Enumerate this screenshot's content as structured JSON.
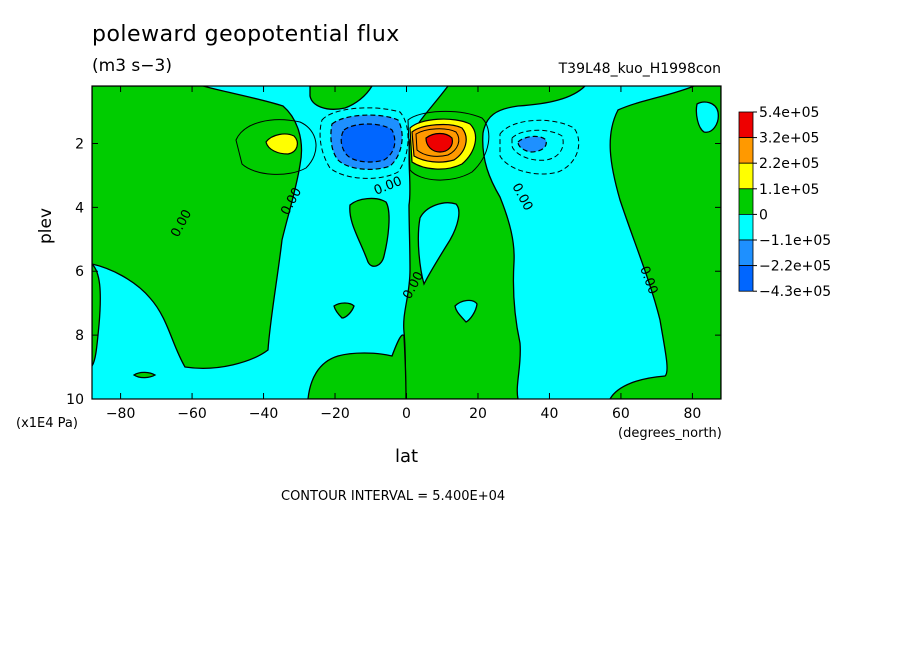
{
  "chart_data": {
    "type": "heatmap",
    "title": "poleward geopotential flux",
    "subtitle": "(m3 s−3)",
    "run_label": "T39L48_kuo_H1998con",
    "xlabel": "lat",
    "x_unit": "(degrees_north)",
    "ylabel": "plev",
    "y_unit": "(x1E4 Pa)",
    "xlim": [
      -88,
      88
    ],
    "ylim": [
      10,
      0.2
    ],
    "x_ticks": [
      -80,
      -60,
      -40,
      -20,
      0,
      20,
      40,
      60,
      80
    ],
    "y_ticks": [
      2,
      4,
      6,
      8,
      10
    ],
    "contour_interval_text": "CONTOUR INTERVAL = 5.400E+04",
    "contour_label": "0.00",
    "legend": {
      "position": "right",
      "levels": [
        "5.4e+05",
        "3.2e+05",
        "2.2e+05",
        "1.1e+05",
        "0",
        "−1.1e+05",
        "−2.2e+05",
        "−4.3e+05"
      ],
      "colors": [
        "#ee0000",
        "#ff9900",
        "#ffff00",
        "#00cc00",
        "#00ffff",
        "#1e90ff",
        "#0066ff"
      ]
    },
    "features": [
      {
        "label": "northern maximum",
        "lat": 9,
        "plev": 1.9,
        "value": 540000
      },
      {
        "label": "southern minimum",
        "lat": -10,
        "plev": 1.9,
        "value": -430000
      },
      {
        "label": "southern secondary maximum",
        "lat": -35,
        "plev": 1.9,
        "value": 160000
      },
      {
        "label": "northern secondary minimum",
        "lat": 35,
        "plev": 1.9,
        "value": -200000
      }
    ]
  }
}
